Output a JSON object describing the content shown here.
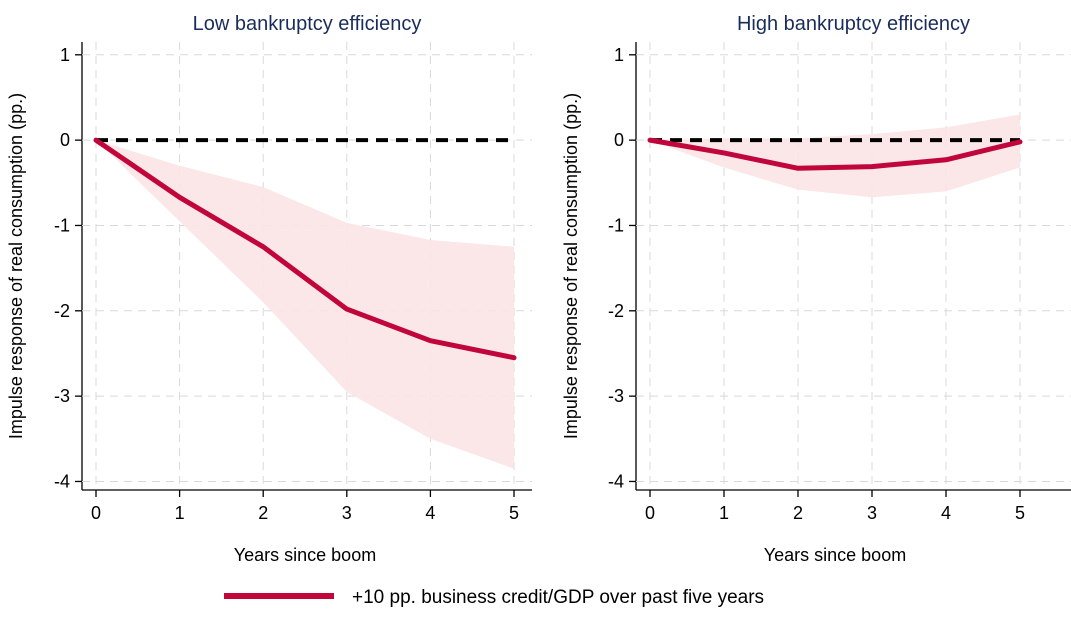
{
  "colors": {
    "response_line": "#c0063b",
    "confidence_band": "#fbe3e6",
    "zero_line": "#000000",
    "grid": "#d9d9d9",
    "title": "#1a2d5a"
  },
  "legend": {
    "label": "+10 pp. business credit/GDP over past five years",
    "position": "bottom-center"
  },
  "chart_data": [
    {
      "type": "line",
      "title": "Low bankruptcy efficiency",
      "xlabel": "Years since boom",
      "ylabel": "Impulse response of real consumption (pp.)",
      "x": [
        0,
        1,
        2,
        3,
        4,
        5
      ],
      "xticks": [
        0,
        1,
        2,
        3,
        4,
        5
      ],
      "yticks": [
        1,
        0,
        -1,
        -2,
        -3,
        -4
      ],
      "xlim": [
        0,
        5
      ],
      "ylim": [
        -4.1,
        1.15
      ],
      "grid": true,
      "zero_line": {
        "y": 0,
        "style": "dashed"
      },
      "series": [
        {
          "name": "+10 pp. business credit/GDP over past five years",
          "values": [
            0,
            -0.67,
            -1.25,
            -1.98,
            -2.35,
            -2.55
          ],
          "lower": [
            0,
            -0.95,
            -1.9,
            -2.95,
            -3.5,
            -3.85
          ],
          "upper": [
            0,
            -0.3,
            -0.55,
            -0.97,
            -1.17,
            -1.25
          ]
        }
      ]
    },
    {
      "type": "line",
      "title": "High bankruptcy efficiency",
      "xlabel": "Years since boom",
      "ylabel": "Impulse response of real consumption (pp.)",
      "x": [
        0,
        1,
        2,
        3,
        4,
        5
      ],
      "xticks": [
        0,
        1,
        2,
        3,
        4,
        5
      ],
      "yticks": [
        1,
        0,
        -1,
        -2,
        -3,
        -4
      ],
      "xlim": [
        0,
        5
      ],
      "ylim": [
        -4.1,
        1.15
      ],
      "grid": true,
      "zero_line": {
        "y": 0,
        "style": "dashed"
      },
      "series": [
        {
          "name": "+10 pp. business credit/GDP over past five years",
          "values": [
            0,
            -0.15,
            -0.33,
            -0.31,
            -0.23,
            -0.02
          ],
          "lower": [
            0,
            -0.32,
            -0.58,
            -0.67,
            -0.6,
            -0.32
          ],
          "upper": [
            0,
            0.02,
            0.02,
            0.07,
            0.15,
            0.3
          ]
        }
      ]
    }
  ]
}
